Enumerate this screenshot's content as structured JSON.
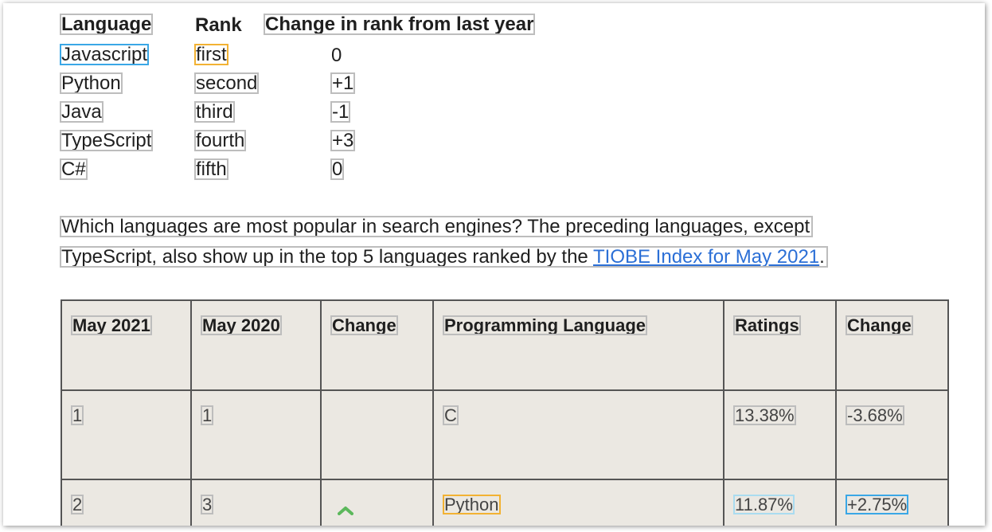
{
  "rank_table": {
    "headers": [
      "Language",
      "Rank",
      "Change in rank from last year"
    ],
    "rows": [
      {
        "language": "Javascript",
        "rank": "first",
        "change": "0"
      },
      {
        "language": "Python",
        "rank": "second",
        "change": "+1"
      },
      {
        "language": "Java",
        "rank": "third",
        "change": "-1"
      },
      {
        "language": "TypeScript",
        "rank": "fourth",
        "change": "+3"
      },
      {
        "language": "C#",
        "rank": "fifth",
        "change": "0"
      }
    ]
  },
  "paragraph": {
    "line1": "Which languages are most popular in search engines? The preceding languages, except",
    "line2_prefix": "TypeScript,  also show up in the top 5 languages ranked by the ",
    "link_text": "TIOBE Index for May 2021",
    "line2_suffix": "."
  },
  "tiobe_table": {
    "headers": [
      "May 2021",
      "May 2020",
      "Change",
      "Programming Language",
      "Ratings",
      "Change"
    ],
    "rows": [
      {
        "may2021": "1",
        "may2020": "1",
        "change_icon": "",
        "language": "C",
        "ratings": "13.38%",
        "change": "-3.68%"
      },
      {
        "may2021": "2",
        "may2020": "3",
        "change_icon": "chevron-up-icon",
        "language": "Python",
        "ratings": "11.87%",
        "change": "+2.75%"
      }
    ]
  },
  "colors": {
    "link": "#2b6fd6",
    "table_bg": "#ebe8e2",
    "highlight_blue": "#3aa7e6",
    "highlight_orange": "#f2b233",
    "arrow_green": "#5cb85c"
  }
}
